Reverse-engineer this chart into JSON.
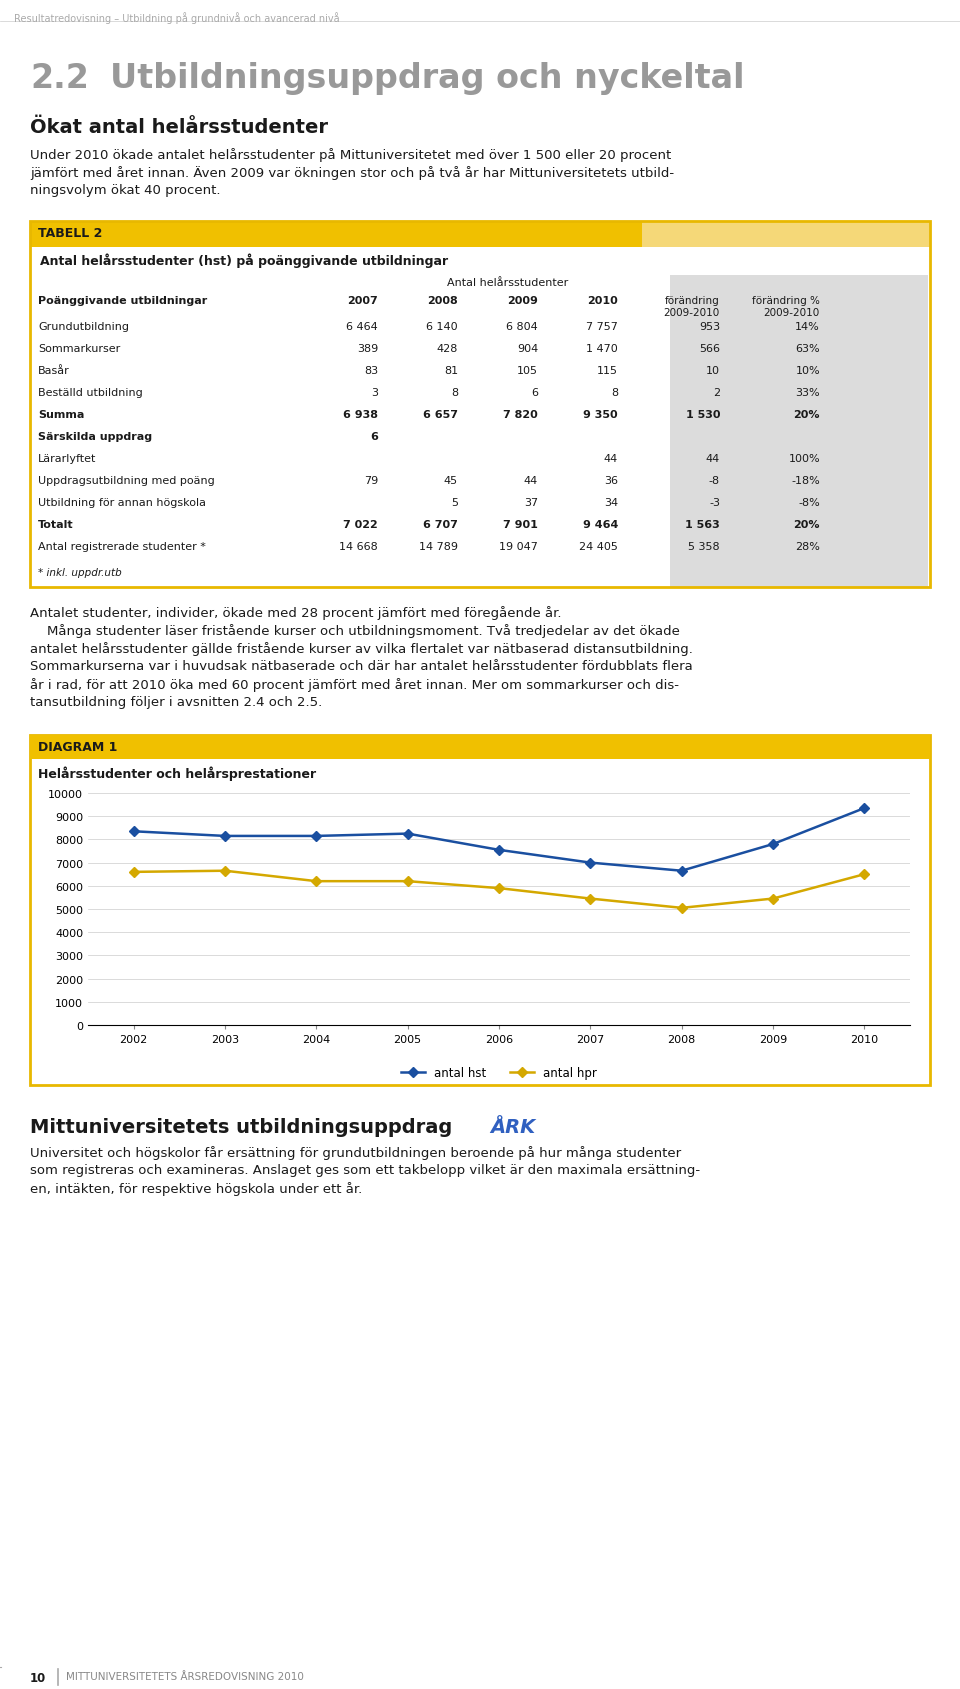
{
  "page_bg": "#ffffff",
  "header_text": "Resultatredovisning – Utbildning på grundnivå och avancerad nivå",
  "section_number": "2.2",
  "section_title": "Utbildningsuppdrag och nyckeltal",
  "subsection_title": "Ökat antal helårsstudenter",
  "body_text1_lines": [
    "Under 2010 ökade antalet helårsstudenter på Mittuniversitetet med över 1 500 eller 20 procent",
    "jämfört med året innan. Även 2009 var ökningen stor och på två år har Mittuniversitetets utbild-",
    "ningsvolym ökat 40 procent."
  ],
  "table_header": "TABELL 2",
  "table_subtitle": "Antal helårsstudenter (hst) på poänggivande utbildningar",
  "table_col_header": "Antal helårsstudenter",
  "table_border_color": "#e8b800",
  "table_header_bg": "#f0c000",
  "table_header_right_bg": "#f5d878",
  "table_shaded_bg": "#dcdcdc",
  "table_footnote": "* inkl. uppdr.utb",
  "body_text2": "Antalet studenter, individer, ökade med 28 procent jämfört med föregående år.",
  "body_text3_lines": [
    "    Många studenter läser fristående kurser och utbildningsmoment. Två tredjedelar av det ökade",
    "antalet helårsstudenter gällde fristående kurser av vilka flertalet var nätbaserad distansutbildning.",
    "Sommarkurserna var i huvudsak nätbaserade och där har antalet helårsstudenter fördubblats flera",
    "år i rad, för att 2010 öka med 60 procent jämfört med året innan. Mer om sommarkurser och dis-",
    "tansutbildning följer i avsnitten 2.4 och 2.5."
  ],
  "diagram_header": "DIAGRAM 1",
  "diagram_title": "Helårsstudenter och helårsprestationer",
  "diagram_border_color": "#e8b800",
  "diagram_header_bg": "#f0c000",
  "years": [
    2002,
    2003,
    2004,
    2005,
    2006,
    2007,
    2008,
    2009,
    2010
  ],
  "antal_hst": [
    8350,
    8150,
    8150,
    8250,
    7550,
    7000,
    6650,
    7800,
    9350
  ],
  "antal_hpr": [
    6600,
    6650,
    6200,
    6200,
    5900,
    5450,
    5050,
    5450,
    6500
  ],
  "line_color_hst": "#1a4fa0",
  "line_color_hpr": "#d4a800",
  "yticks": [
    0,
    1000,
    2000,
    3000,
    4000,
    5000,
    6000,
    7000,
    8000,
    9000,
    10000
  ],
  "section3_title": "Mittuniversitetets utbildningsuppdrag",
  "section3_ark": "ÅRK",
  "section3_ark_color": "#3060c0",
  "section3_body_lines": [
    "Universitet och högskolor får ersättning för grundutbildningen beroende på hur många studenter",
    "som registreras och examineras. Anslaget ges som ett takbelopp vilket är den maximala ersättning-",
    "en, intäkten, för respektive högskola under ett år."
  ],
  "footer_page": "10",
  "footer_text": "MITTUNIVERSITETETS ÅRSREDOVISNING 2010",
  "section_title_color": "#999999",
  "subsection_color": "#1a1a1a",
  "text_color": "#1a1a1a",
  "data_rows": [
    {
      "label": "Grundutbildning",
      "bold": false,
      "v2007": "6 464",
      "v2008": "6 140",
      "v2009": "6 804",
      "v2010": "7 757",
      "forand": "953",
      "forandpct": "14%"
    },
    {
      "label": "Sommarkurser",
      "bold": false,
      "v2007": "389",
      "v2008": "428",
      "v2009": "904",
      "v2010": "1 470",
      "forand": "566",
      "forandpct": "63%"
    },
    {
      "label": "Basår",
      "bold": false,
      "v2007": "83",
      "v2008": "81",
      "v2009": "105",
      "v2010": "115",
      "forand": "10",
      "forandpct": "10%"
    },
    {
      "label": "Beställd utbildning",
      "bold": false,
      "v2007": "3",
      "v2008": "8",
      "v2009": "6",
      "v2010": "8",
      "forand": "2",
      "forandpct": "33%"
    },
    {
      "label": "Summa",
      "bold": true,
      "v2007": "6 938",
      "v2008": "6 657",
      "v2009": "7 820",
      "v2010": "9 350",
      "forand": "1 530",
      "forandpct": "20%"
    },
    {
      "label": "Särskilda uppdrag",
      "bold": true,
      "v2007": "6",
      "v2008": "",
      "v2009": "",
      "v2010": "",
      "forand": "",
      "forandpct": ""
    },
    {
      "label": "Lärarlyftet",
      "bold": false,
      "v2007": "",
      "v2008": "",
      "v2009": "",
      "v2010": "44",
      "forand": "44",
      "forandpct": "100%"
    },
    {
      "label": "Uppdragsutbildning med poäng",
      "bold": false,
      "v2007": "79",
      "v2008": "45",
      "v2009": "44",
      "v2010": "36",
      "forand": "-8",
      "forandpct": "-18%"
    },
    {
      "label": "Utbildning för annan högskola",
      "bold": false,
      "v2007": "",
      "v2008": "5",
      "v2009": "37",
      "v2010": "34",
      "forand": "-3",
      "forandpct": "-8%"
    },
    {
      "label": "Totalt",
      "bold": true,
      "v2007": "7 022",
      "v2008": "6 707",
      "v2009": "7 901",
      "v2010": "9 464",
      "forand": "1 563",
      "forandpct": "20%"
    },
    {
      "label": "Antal registrerade studenter *",
      "bold": false,
      "v2007": "14 668",
      "v2008": "14 789",
      "v2009": "19 047",
      "v2010": "24 405",
      "forand": "5 358",
      "forandpct": "28%"
    }
  ]
}
